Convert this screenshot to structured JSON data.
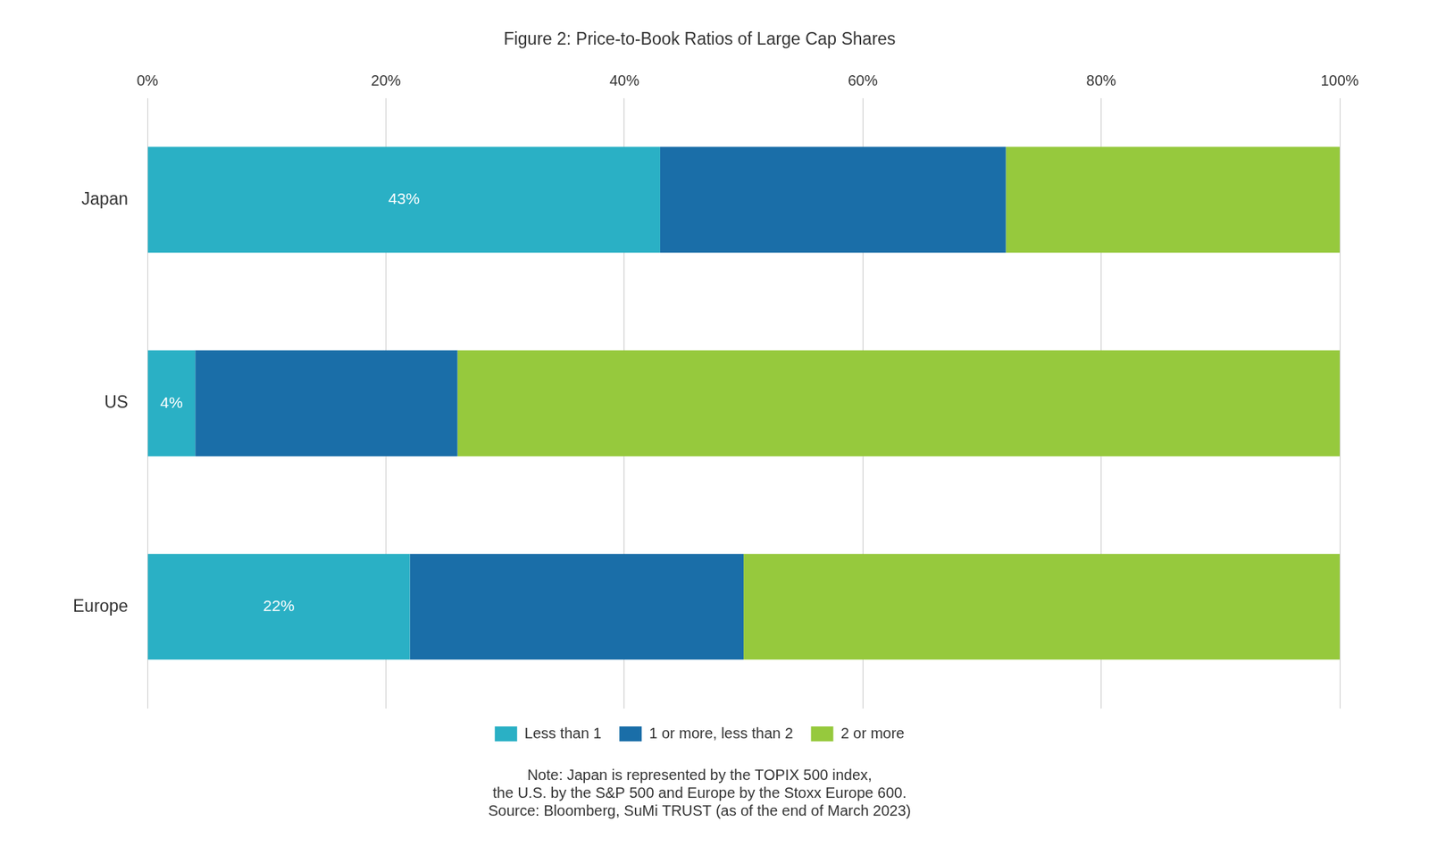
{
  "chart_data": {
    "type": "bar",
    "orientation": "horizontal",
    "stacked": true,
    "title": "Figure 2: Price-to-Book Ratios of Large Cap Shares",
    "categories": [
      "Japan",
      "US",
      "Europe"
    ],
    "series": [
      {
        "name": "Less than 1",
        "color": "#2ab0c5",
        "values": [
          43,
          4,
          22
        ],
        "data_labels": true,
        "value_labels": [
          "43%",
          "4%",
          "22%"
        ]
      },
      {
        "name": "1 or more, less than 2",
        "color": "#1a6ea8",
        "values": [
          29,
          22,
          28
        ]
      },
      {
        "name": "2 or more",
        "color": "#96c93d",
        "values": [
          28,
          74,
          50
        ]
      }
    ],
    "xlim": [
      0,
      100
    ],
    "xticks": [
      {
        "value": 0,
        "label": "0%"
      },
      {
        "value": 20,
        "label": "20%"
      },
      {
        "value": 40,
        "label": "40%"
      },
      {
        "value": 60,
        "label": "60%"
      },
      {
        "value": 80,
        "label": "80%"
      },
      {
        "value": 100,
        "label": "100%"
      }
    ],
    "grid": true,
    "legend": "bottom",
    "annotations": [
      "Note: Japan is represented by the TOPIX 500 index,",
      "the U.S. by the S&P 500 and Europe by the Stoxx Europe 600.",
      "Source: Bloomberg, SuMi TRUST (as of the end of March 2023)"
    ]
  }
}
